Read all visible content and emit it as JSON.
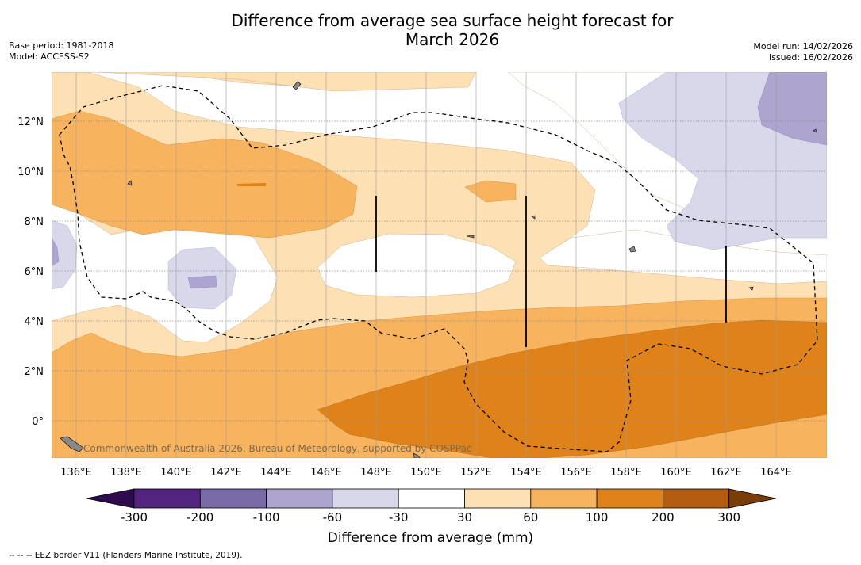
{
  "title": {
    "line1": "Difference from average sea surface height forecast for",
    "line2": "March 2026"
  },
  "meta_left": {
    "base_period": "Base period: 1981-2018",
    "model": "Model: ACCESS-S2"
  },
  "meta_right": {
    "model_run": "Model run: 14/02/2026",
    "issued": "Issued: 16/02/2026"
  },
  "map": {
    "lat_labels": [
      "12°N",
      "10°N",
      "8°N",
      "6°N",
      "4°N",
      "2°N",
      "0°"
    ],
    "lon_labels": [
      "136°E",
      "138°E",
      "140°E",
      "142°E",
      "144°E",
      "146°E",
      "148°E",
      "150°E",
      "152°E",
      "154°E",
      "156°E",
      "158°E",
      "160°E",
      "162°E",
      "164°E"
    ],
    "lon_range": [
      135,
      166
    ],
    "lat_range": [
      -1.5,
      14
    ],
    "attribution": "Commonwealth of Australia 2026, Bureau of Meteorology, supported by COSPPac"
  },
  "colorbar": {
    "ticks": [
      "-300",
      "-200",
      "-100",
      "-60",
      "-30",
      "30",
      "60",
      "100",
      "200",
      "300"
    ],
    "colors": [
      "#52247f",
      "#7b6aa8",
      "#ada5cf",
      "#d8d8ea",
      "#ffffff",
      "#fde1b5",
      "#f8b35e",
      "#e0821a",
      "#b45c10"
    ],
    "under_color": "#2d0b4e",
    "over_color": "#7a3d08",
    "label": "Difference from average (mm)"
  },
  "footer": "--  --  -- EEZ border V11 (Flanders Marine Institute, 2019)."
}
